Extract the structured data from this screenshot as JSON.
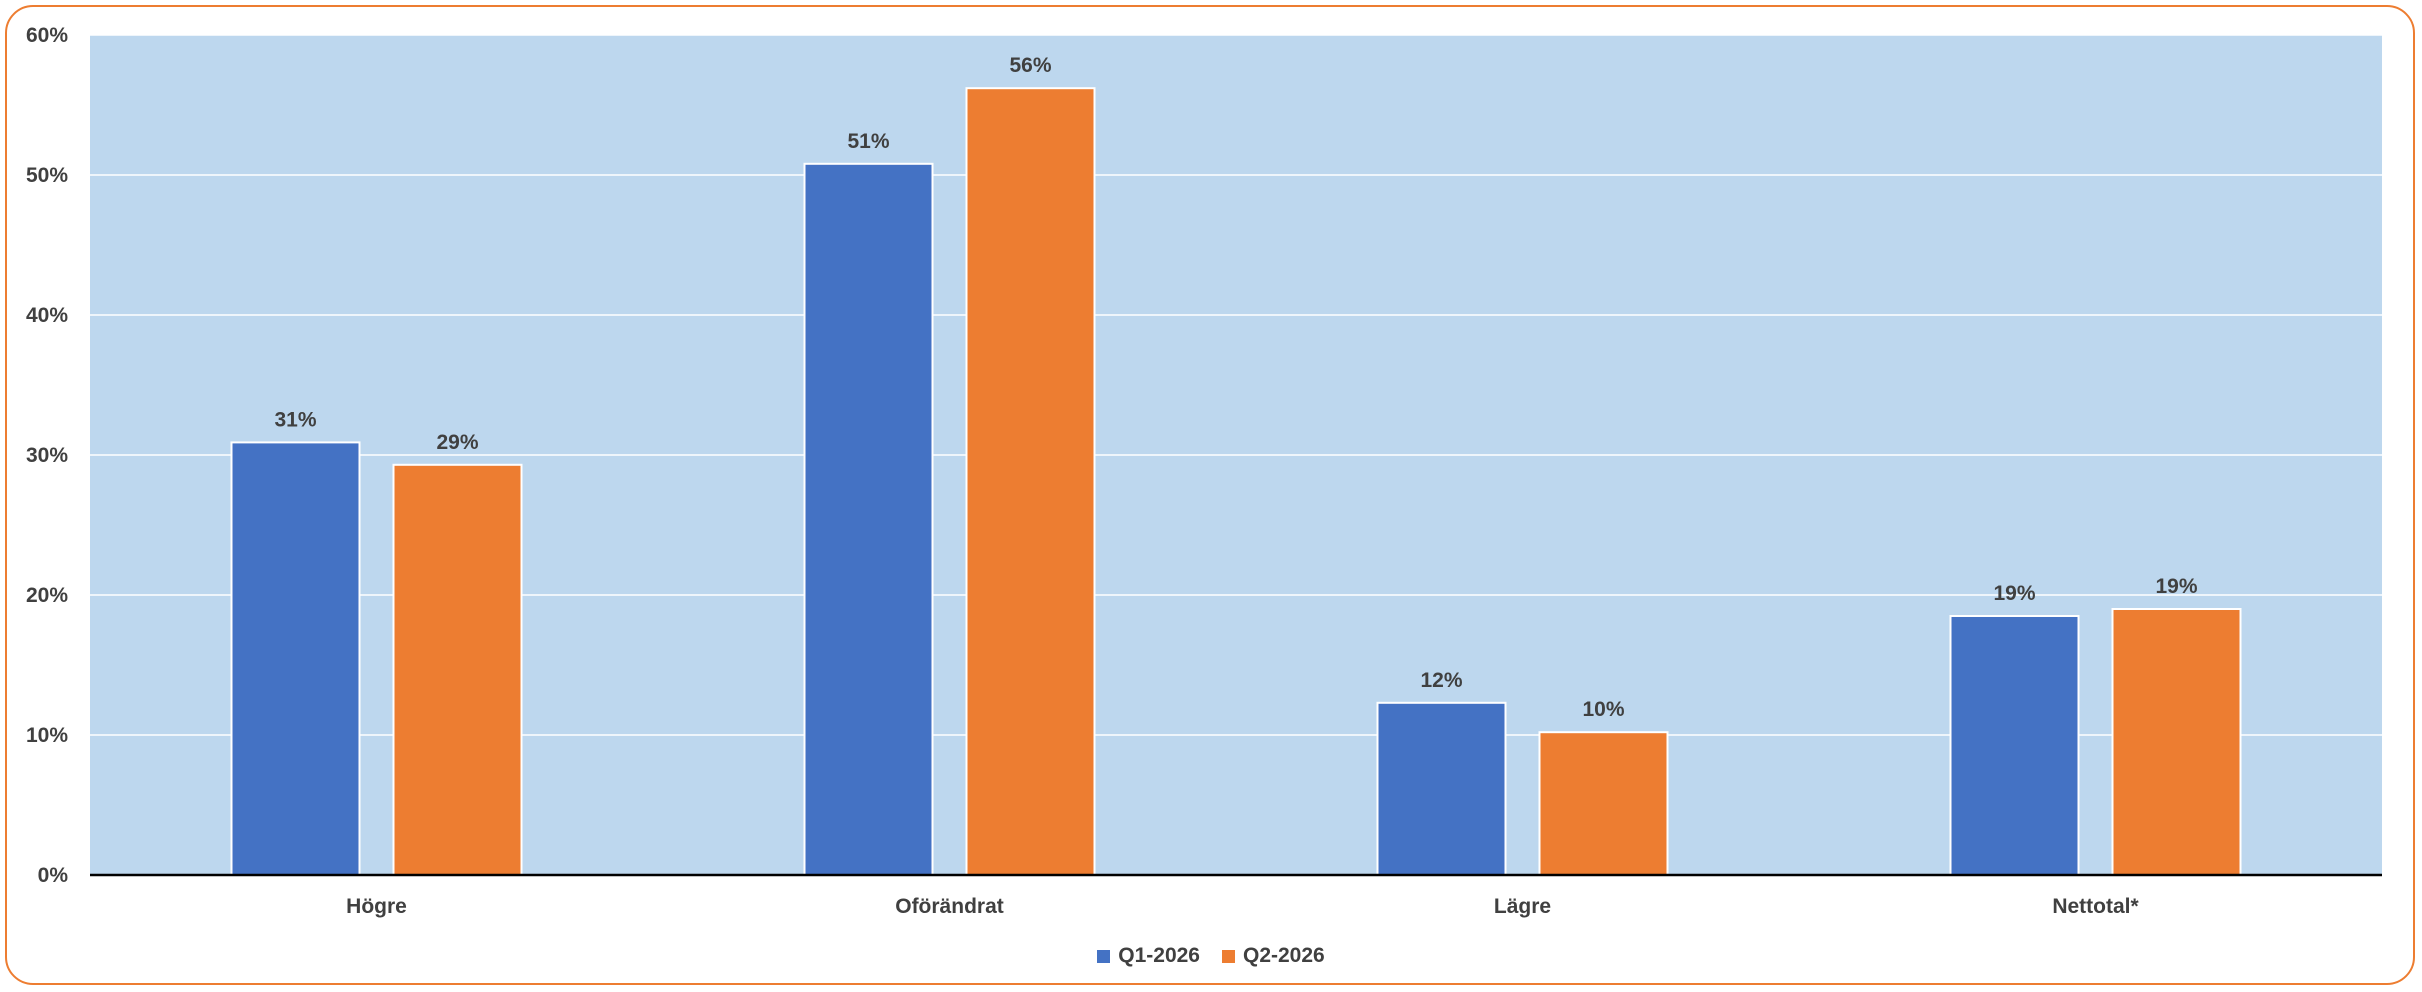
{
  "chart_data": {
    "type": "bar",
    "categories": [
      "Högre",
      "Oförändrat",
      "Lägre",
      "Nettotal*"
    ],
    "series": [
      {
        "name": "Q1-2026",
        "values": [
          31,
          51,
          12,
          19
        ],
        "plotted": [
          30.9,
          50.8,
          12.3,
          18.5
        ],
        "labels": [
          "31%",
          "51%",
          "12%",
          "19%"
        ],
        "color": "#4472C4"
      },
      {
        "name": "Q2-2026",
        "values": [
          29,
          56,
          10,
          19
        ],
        "plotted": [
          29.3,
          56.2,
          10.2,
          19.0
        ],
        "labels": [
          "29%",
          "56%",
          "10%",
          "19%"
        ],
        "color": "#ED7D31"
      }
    ],
    "y_ticks": [
      0,
      10,
      20,
      30,
      40,
      50,
      60
    ],
    "y_tick_labels": [
      "0%",
      "10%",
      "20%",
      "30%",
      "40%",
      "50%",
      "60%"
    ],
    "ylim": [
      0,
      60
    ],
    "grid": true,
    "legend_position": "bottom",
    "plot_background": "#BDD7EE",
    "gridline_color": "#FFFFFF",
    "frame_color": "#ED7D31"
  }
}
